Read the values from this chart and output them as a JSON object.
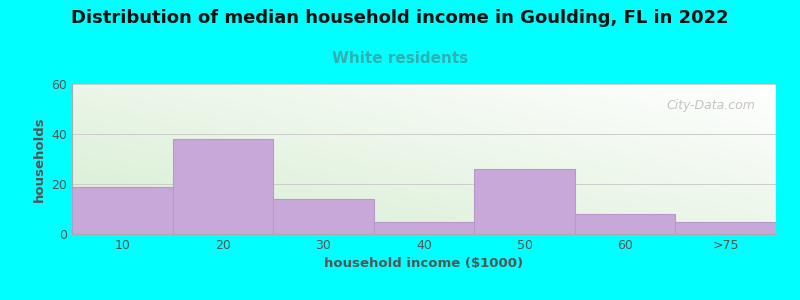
{
  "title": "Distribution of median household income in Goulding, FL in 2022",
  "subtitle": "White residents",
  "subtitle_color": "#30b0b0",
  "xlabel": "household income ($1000)",
  "ylabel": "households",
  "categories": [
    "10",
    "20",
    "30",
    "40",
    "50",
    "60",
    ">75"
  ],
  "values": [
    19,
    38,
    14,
    5,
    26,
    8,
    5
  ],
  "bar_color": "#c8a8d8",
  "bar_edge_color": "#b898c8",
  "ylim": [
    0,
    60
  ],
  "yticks": [
    0,
    20,
    40,
    60
  ],
  "background_color": "#00ffff",
  "grad_color_green": [
    0.84,
    0.93,
    0.82
  ],
  "grad_color_white": [
    1.0,
    1.0,
    1.0
  ],
  "watermark": "City-Data.com",
  "title_fontsize": 13,
  "subtitle_fontsize": 11,
  "label_fontsize": 9.5,
  "tick_fontsize": 9
}
